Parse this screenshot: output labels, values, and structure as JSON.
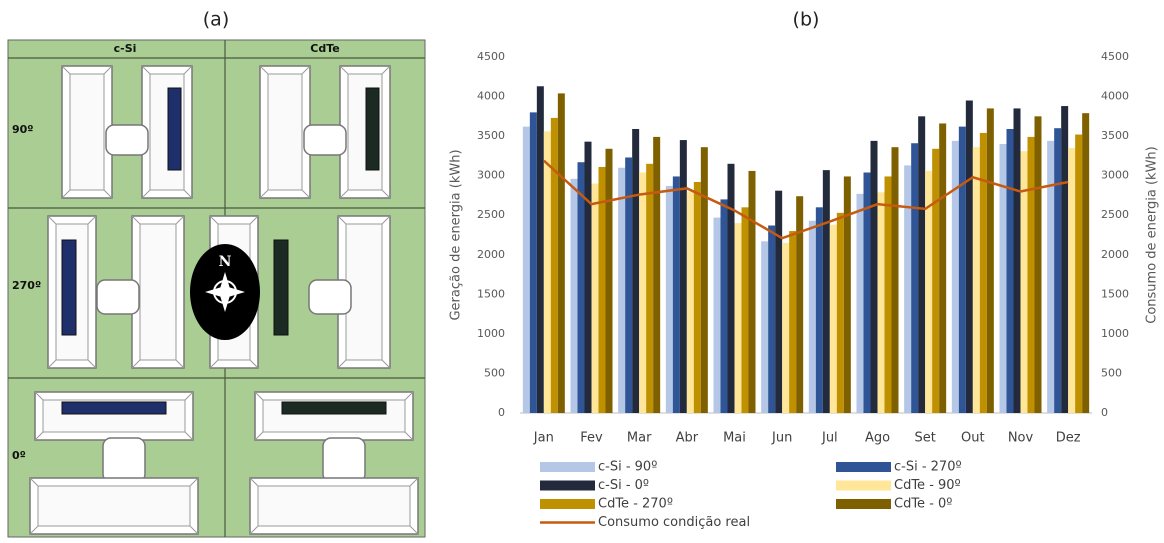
{
  "panel_a": {
    "label": "(a)",
    "columns": [
      "c-Si",
      "CdTe"
    ],
    "rows": [
      "90º",
      "270º",
      "0º"
    ],
    "compass": "N"
  },
  "chart_data": {
    "type": "bar",
    "title": "(b)",
    "y_label": "Geração de energia (kWh)",
    "y2_label": "Consumo de energia (kWh)",
    "categories": [
      "Jan",
      "Fev",
      "Mar",
      "Abr",
      "Mai",
      "Jun",
      "Jul",
      "Ago",
      "Set",
      "Out",
      "Nov",
      "Dez"
    ],
    "series": [
      {
        "name": "c-Si - 90º",
        "color": "#b4c7e7",
        "type": "bar",
        "values": [
          3620,
          2960,
          3100,
          2870,
          2470,
          2170,
          2430,
          2770,
          3130,
          3440,
          3400,
          3440
        ]
      },
      {
        "name": "c-Si - 270º",
        "color": "#2f5597",
        "type": "bar",
        "values": [
          3800,
          3170,
          3230,
          2990,
          2700,
          2370,
          2600,
          3040,
          3410,
          3620,
          3590,
          3600
        ]
      },
      {
        "name": "c-Si - 0º",
        "color": "#222a3c",
        "type": "bar",
        "values": [
          4130,
          3430,
          3590,
          3450,
          3150,
          2810,
          3070,
          3440,
          3750,
          3950,
          3850,
          3880
        ]
      },
      {
        "name": "CdTe - 90º",
        "color": "#ffe699",
        "type": "bar",
        "values": [
          3560,
          2900,
          3040,
          2800,
          2400,
          2150,
          2380,
          2790,
          3060,
          3360,
          3310,
          3350
        ]
      },
      {
        "name": "CdTe - 270º",
        "color": "#bf9000",
        "type": "bar",
        "values": [
          3730,
          3110,
          3150,
          2920,
          2600,
          2300,
          2530,
          2990,
          3340,
          3540,
          3490,
          3520
        ]
      },
      {
        "name": "CdTe - 0º",
        "color": "#7f6000",
        "type": "bar",
        "values": [
          4040,
          3340,
          3490,
          3360,
          3060,
          2740,
          2990,
          3360,
          3660,
          3850,
          3750,
          3790
        ]
      },
      {
        "name": "Consumo condição real",
        "color": "#c55a11",
        "type": "line",
        "axis": "y2",
        "values": [
          3190,
          2640,
          2760,
          2840,
          2560,
          2210,
          2420,
          2640,
          2580,
          2980,
          2800,
          2920
        ]
      }
    ],
    "ylim": [
      0,
      4500
    ],
    "yticks": [
      0,
      500,
      1000,
      1500,
      2000,
      2500,
      3000,
      3500,
      4000,
      4500
    ],
    "y2lim": [
      0,
      4500
    ],
    "y2ticks": [
      0,
      500,
      1000,
      1500,
      2000,
      2500,
      3000,
      3500,
      4000,
      4500
    ],
    "grid": false,
    "legend": "bottom"
  }
}
